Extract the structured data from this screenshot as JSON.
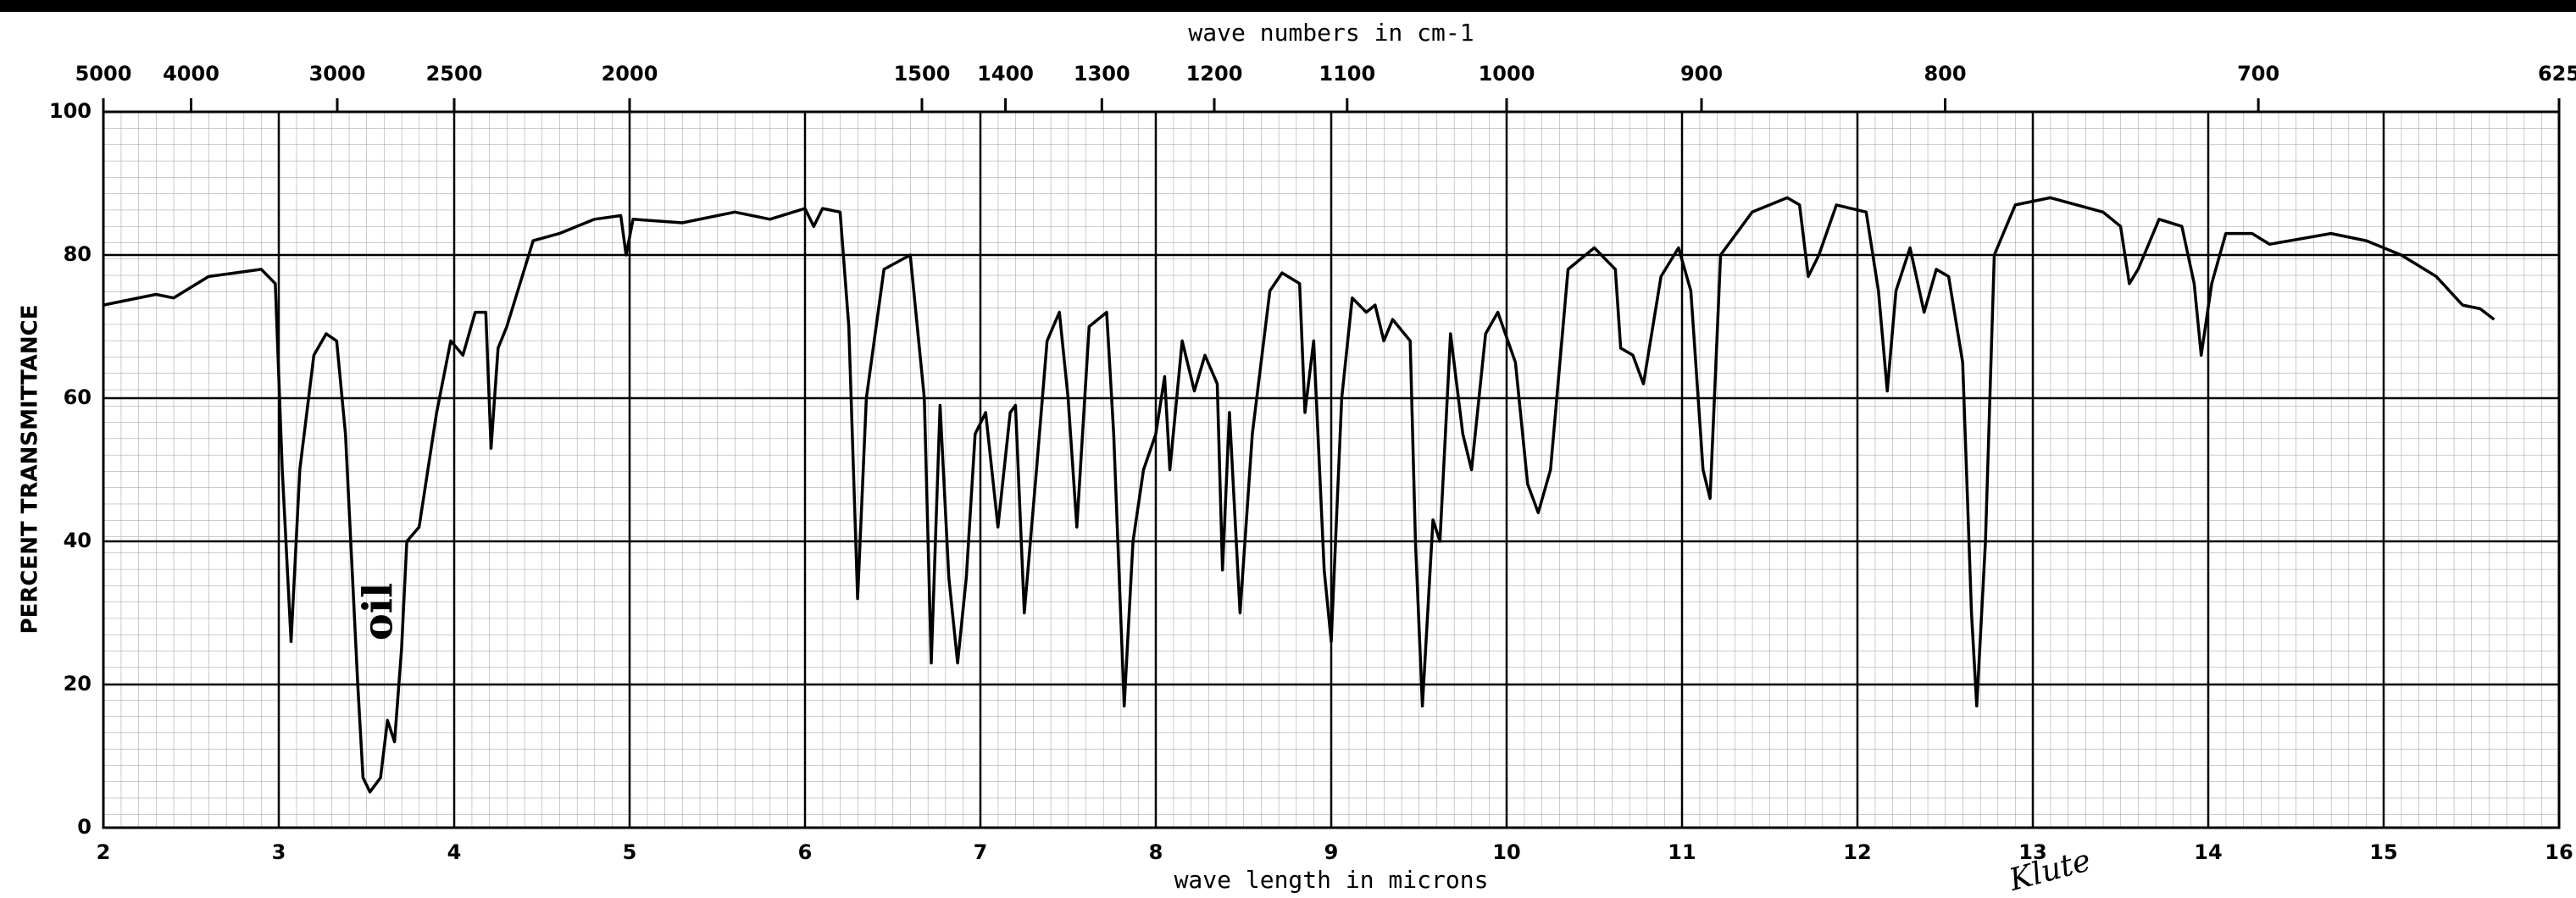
{
  "chart_data": {
    "type": "line",
    "x_title": "wave length in microns",
    "x2_title": "wave numbers in cm-1",
    "y_title": "PERCENT TRANSMITTANCE",
    "annotations": [
      "oil",
      "Klute"
    ],
    "color": "#000000",
    "grid": true,
    "xlim": [
      2,
      16
    ],
    "xticks": [
      2,
      3,
      4,
      5,
      6,
      7,
      8,
      9,
      10,
      11,
      12,
      13,
      14,
      15,
      16
    ],
    "x2ticks": [
      5000,
      4000,
      3000,
      2500,
      2000,
      1500,
      1400,
      1300,
      1200,
      1100,
      1000,
      900,
      800,
      700,
      625
    ],
    "ylim": [
      0,
      100
    ],
    "yticks": [
      0,
      20,
      40,
      60,
      80,
      100
    ],
    "x": [
      2.0,
      2.3,
      2.4,
      2.6,
      2.9,
      2.98,
      3.02,
      3.07,
      3.12,
      3.2,
      3.27,
      3.33,
      3.38,
      3.45,
      3.48,
      3.52,
      3.58,
      3.62,
      3.66,
      3.7,
      3.73,
      3.8,
      3.9,
      3.98,
      4.05,
      4.12,
      4.18,
      4.21,
      4.25,
      4.3,
      4.45,
      4.6,
      4.8,
      4.95,
      4.98,
      5.02,
      5.3,
      5.6,
      5.8,
      6.0,
      6.05,
      6.1,
      6.2,
      6.25,
      6.3,
      6.35,
      6.45,
      6.6,
      6.68,
      6.72,
      6.77,
      6.82,
      6.87,
      6.92,
      6.97,
      7.03,
      7.1,
      7.17,
      7.2,
      7.25,
      7.32,
      7.38,
      7.45,
      7.5,
      7.55,
      7.62,
      7.72,
      7.76,
      7.82,
      7.87,
      7.93,
      8.0,
      8.05,
      8.08,
      8.15,
      8.22,
      8.28,
      8.35,
      8.38,
      8.42,
      8.48,
      8.55,
      8.65,
      8.72,
      8.82,
      8.85,
      8.9,
      8.96,
      9.0,
      9.06,
      9.12,
      9.2,
      9.25,
      9.3,
      9.35,
      9.45,
      9.48,
      9.52,
      9.58,
      9.62,
      9.68,
      9.75,
      9.8,
      9.88,
      9.95,
      10.05,
      10.12,
      10.18,
      10.25,
      10.35,
      10.5,
      10.62,
      10.65,
      10.72,
      10.78,
      10.88,
      10.98,
      11.05,
      11.12,
      11.16,
      11.22,
      11.4,
      11.6,
      11.67,
      11.72,
      11.78,
      11.88,
      12.05,
      12.12,
      12.17,
      12.22,
      12.3,
      12.38,
      12.45,
      12.52,
      12.6,
      12.65,
      12.68,
      12.73,
      12.78,
      12.9,
      13.1,
      13.4,
      13.5,
      13.55,
      13.6,
      13.72,
      13.85,
      13.92,
      13.96,
      14.02,
      14.1,
      14.25,
      14.35,
      14.7,
      14.9,
      15.1,
      15.3,
      15.45,
      15.55,
      15.63
    ],
    "values": [
      73,
      74.5,
      74,
      77,
      78,
      76,
      50,
      26,
      50,
      66,
      69,
      68,
      55,
      20,
      7,
      5,
      7,
      15,
      12,
      25,
      40,
      42,
      58,
      68,
      66,
      72,
      72,
      53,
      67,
      70,
      82,
      83,
      85,
      85.5,
      80,
      85,
      84.5,
      86,
      85,
      86.5,
      84,
      86.5,
      86,
      70,
      32,
      60,
      78,
      80,
      60,
      23,
      59,
      35,
      23,
      35,
      55,
      58,
      42,
      58,
      59,
      30,
      50,
      68,
      72,
      60,
      42,
      70,
      72,
      55,
      17,
      40,
      50,
      55,
      63,
      50,
      68,
      61,
      66,
      62,
      36,
      58,
      30,
      55,
      75,
      77.5,
      76,
      58,
      68,
      36,
      26,
      60,
      74,
      72,
      73,
      68,
      71,
      68,
      40,
      17,
      43,
      40,
      69,
      55,
      50,
      69,
      72,
      65,
      48,
      44,
      50,
      78,
      81,
      78,
      67,
      66,
      62,
      77,
      81,
      75,
      50,
      46,
      80,
      86,
      88,
      87,
      77,
      80,
      87,
      86,
      75,
      61,
      75,
      81,
      72,
      78,
      77,
      65,
      30,
      17,
      40,
      80,
      87,
      88,
      86,
      84,
      76,
      78,
      85,
      84,
      76,
      66,
      76,
      83,
      83,
      81.5,
      83,
      82,
      80,
      77,
      73,
      72.5,
      71
    ]
  }
}
